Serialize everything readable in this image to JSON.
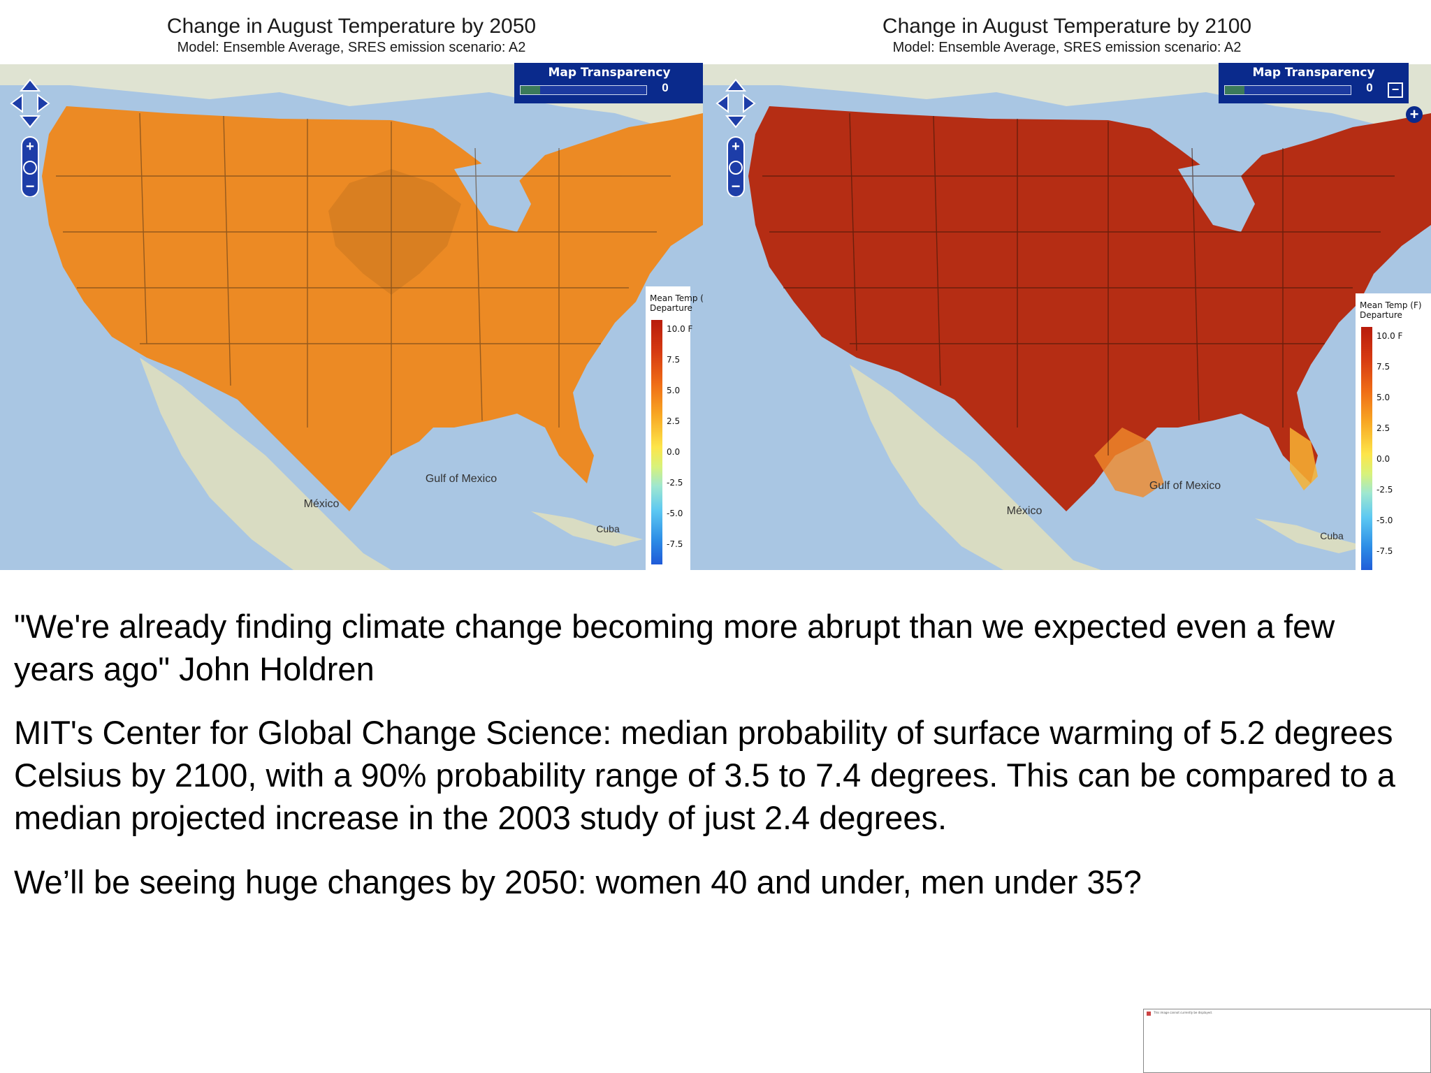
{
  "maps": [
    {
      "title": "Change in August Temperature by 2050",
      "subtitle": "Model: Ensemble Average, SRES emission scenario: A2",
      "transparency_label": "Map Transparency",
      "transparency_value": "0",
      "legend_title_line1": "Mean Temp (",
      "legend_title_line2": "Departure",
      "legend_ticks": [
        "10.0 F",
        "7.5",
        "5.0",
        "2.5",
        "0.0",
        "-2.5",
        "-5.0",
        "-7.5"
      ],
      "place_labels": {
        "gulf": "Gulf of Mexico",
        "mexico": "México",
        "cuba": "Cuba"
      },
      "color": "#ec8a24"
    },
    {
      "title": "Change in August Temperature by 2100",
      "subtitle": "Model: Ensemble Average, SRES emission scenario: A2",
      "transparency_label": "Map Transparency",
      "transparency_value": "0",
      "legend_title_line1": "Mean Temp (F)",
      "legend_title_line2": "Departure",
      "legend_ticks": [
        "10.0 F",
        "7.5",
        "5.0",
        "2.5",
        "0.0",
        "-2.5",
        "-5.0",
        "-7.5"
      ],
      "place_labels": {
        "gulf": "Gulf of Mexico",
        "mexico": "México",
        "cuba": "Cuba"
      },
      "color": "#b52d14"
    }
  ],
  "text": {
    "para1": "\"We're already finding climate change becoming more abrupt than we expected even a few years ago\" John Holdren",
    "para2": "MIT's Center for Global Change Science: median probability of surface warming of 5.2 degrees Celsius by 2100, with a 90% probability range of 3.5 to 7.4 degrees. This can be compared to a median projected increase in the 2003 study of just 2.4 degrees.",
    "para3": "We’ll be seeing huge changes by 2050: women 40 and under, men under 35?"
  },
  "thumbnail": {
    "note": "This image cannot currently be displayed."
  }
}
